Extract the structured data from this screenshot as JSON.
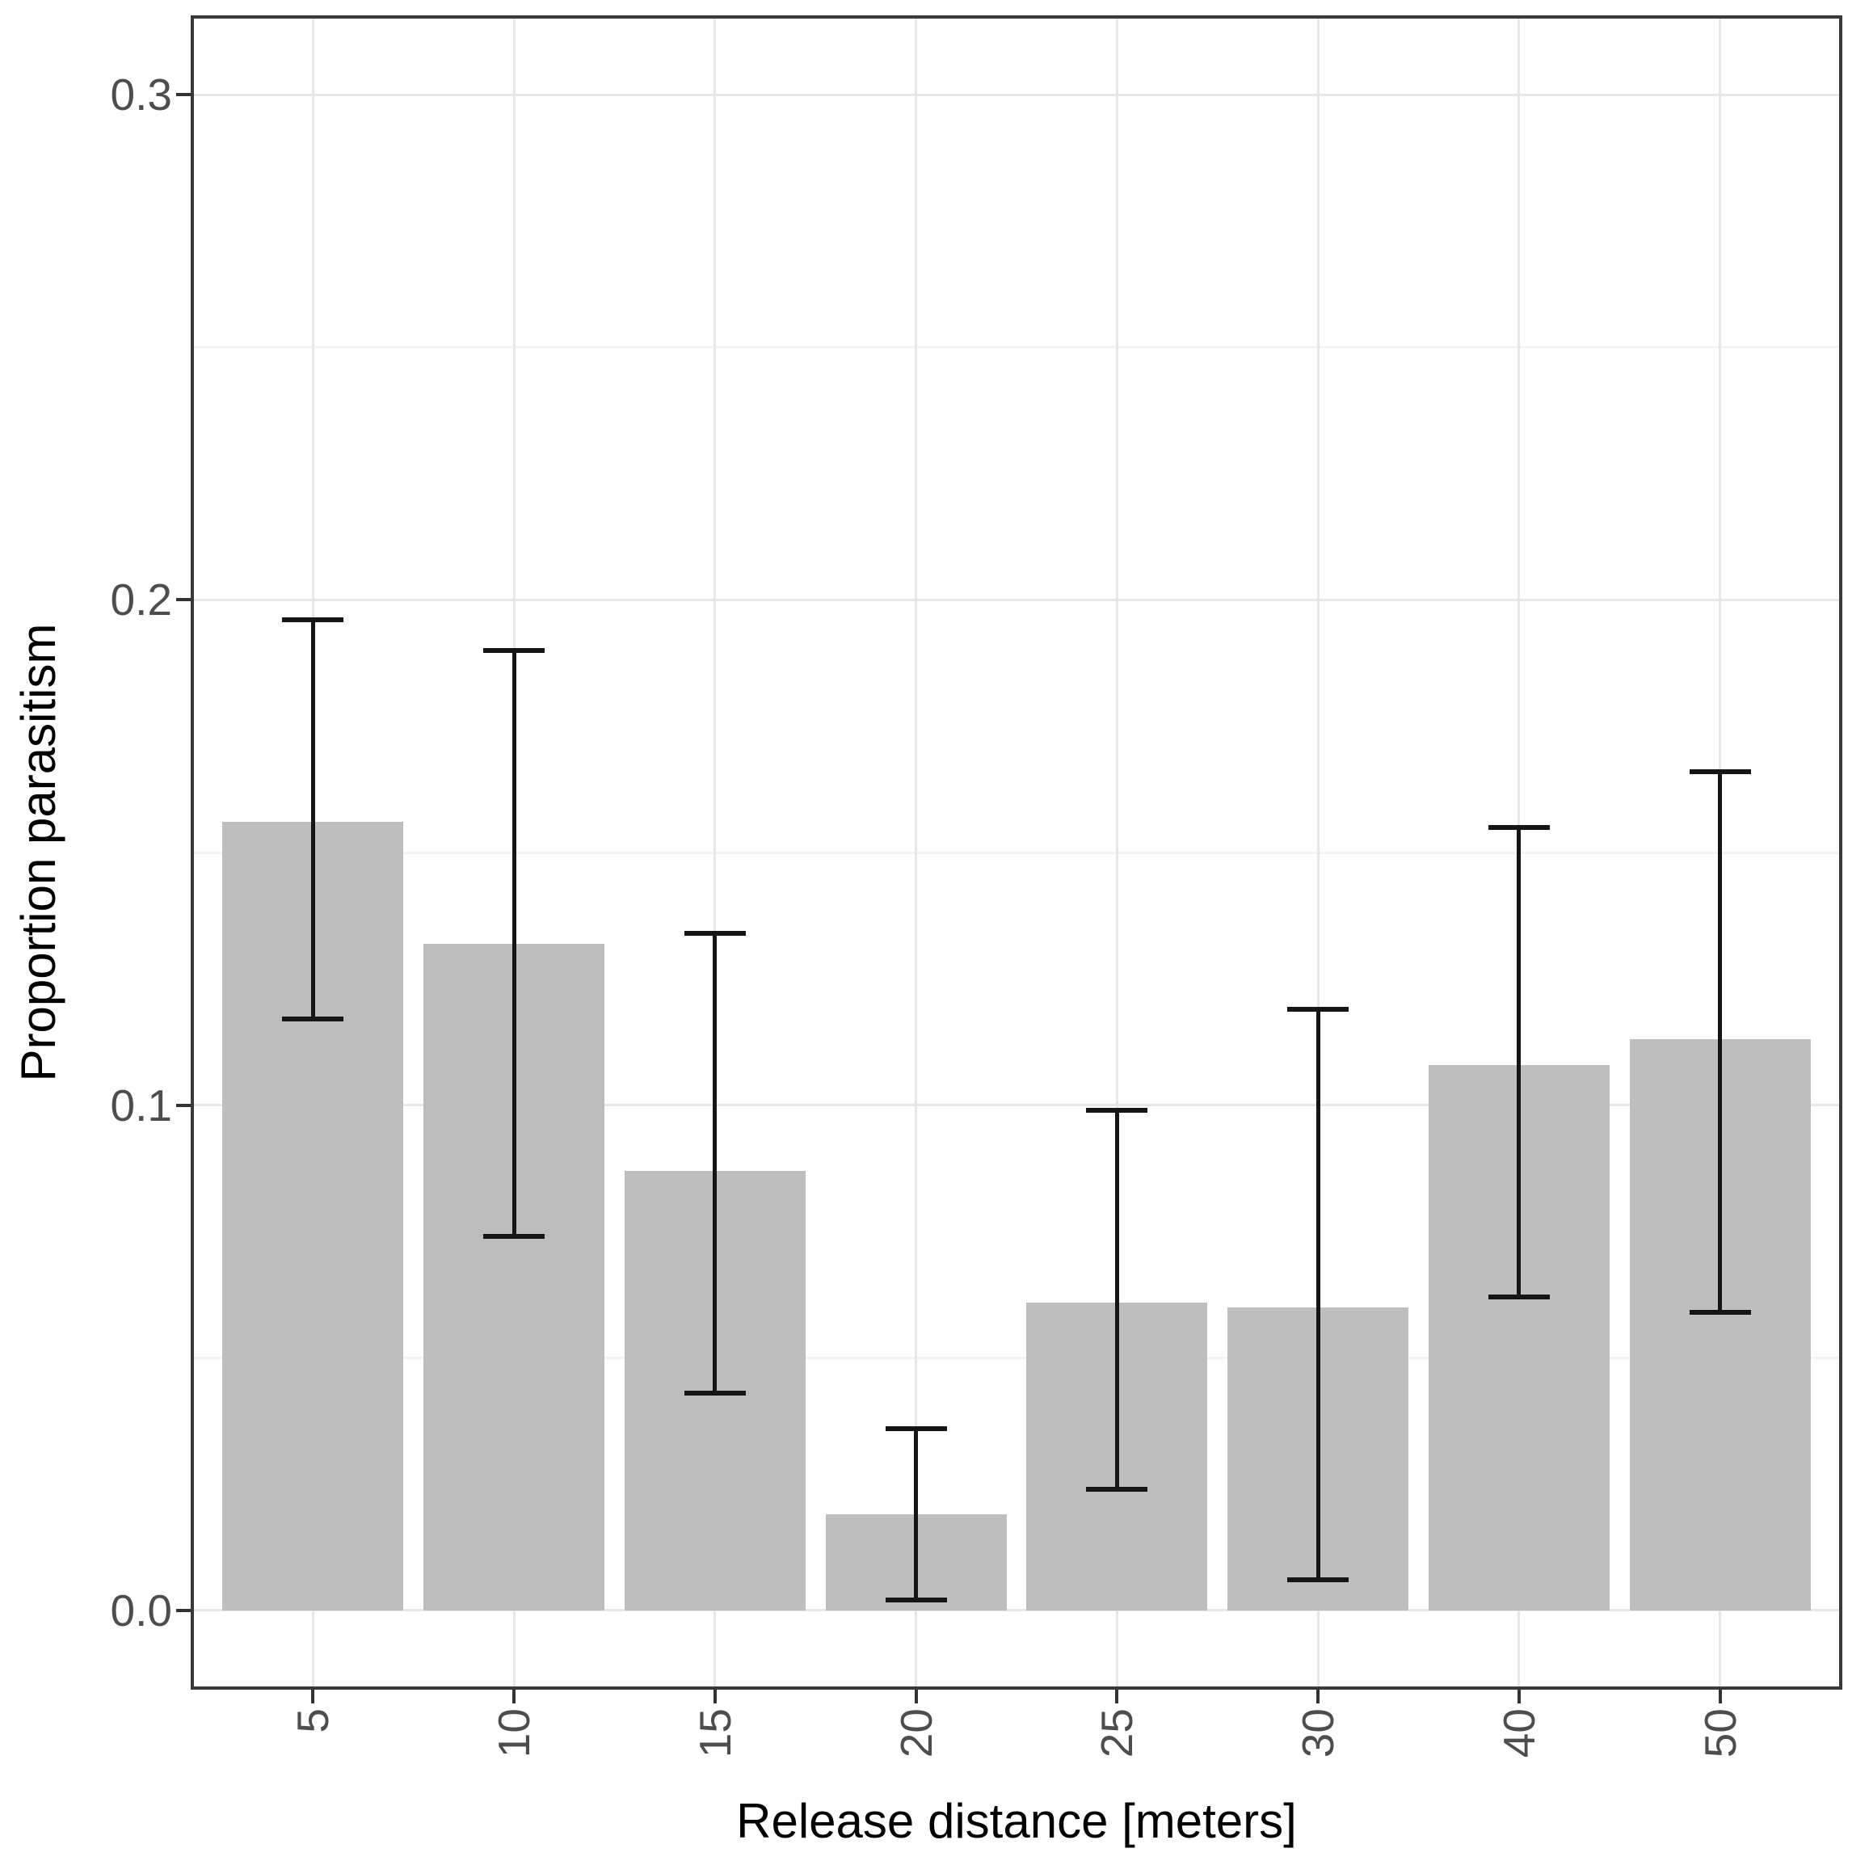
{
  "chart_data": {
    "type": "bar",
    "title": "",
    "xlabel": "Release distance [meters]",
    "ylabel": "Proportion parasitism",
    "categories": [
      "5",
      "10",
      "15",
      "20",
      "25",
      "30",
      "40",
      "50"
    ],
    "values": [
      0.156,
      0.132,
      0.087,
      0.019,
      0.061,
      0.06,
      0.108,
      0.113
    ],
    "error_low": [
      0.117,
      0.074,
      0.043,
      0.002,
      0.024,
      0.006,
      0.062,
      0.059
    ],
    "error_high": [
      0.196,
      0.19,
      0.134,
      0.036,
      0.099,
      0.119,
      0.155,
      0.166
    ],
    "ylim": [
      -0.0152,
      0.3152
    ],
    "yticks": [
      0.0,
      0.1,
      0.2,
      0.3
    ],
    "ytick_labels": [
      "0.0",
      "0.1",
      "0.2",
      "0.3"
    ],
    "minor_gridlines": [
      0.05,
      0.15,
      0.25
    ],
    "grid": "major+minor horizontal, major vertical at category centers",
    "legend": "none",
    "colors": {
      "bar_fill": "#bebebe",
      "error_bar": "#151515",
      "grid_major": "#e7e7e7",
      "grid_minor": "#f3f3f3",
      "panel_border": "#3a3a3a",
      "tick_mark": "#333333",
      "tick_label": "#4d4d4d",
      "axis_title": "#000000",
      "background": "#ffffff"
    }
  }
}
